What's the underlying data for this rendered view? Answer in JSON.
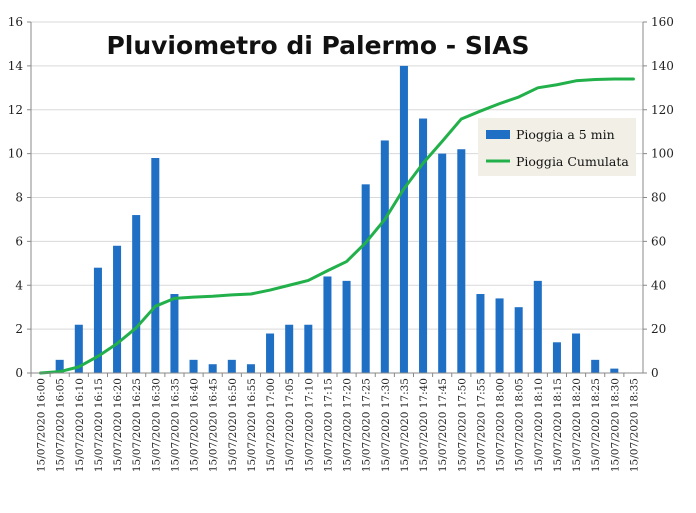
{
  "chart_data": {
    "type": "bar",
    "title": "Pluviometro di Palermo - SIAS",
    "xlabel": "",
    "ylabel": "",
    "y2label": "",
    "ylim": [
      0,
      16
    ],
    "y2lim": [
      0,
      160
    ],
    "yticks": [
      "0",
      "2",
      "4",
      "6",
      "8",
      "10",
      "12",
      "14",
      "16"
    ],
    "y2ticks": [
      "0",
      "20",
      "40",
      "60",
      "80",
      "100",
      "120",
      "140",
      "160"
    ],
    "grid": true,
    "legend_position": "right",
    "categories": [
      "15/07/2020 16:00",
      "15/07/2020 16:05",
      "15/07/2020 16:10",
      "15/07/2020 16:15",
      "15/07/2020 16:20",
      "15/07/2020 16:25",
      "15/07/2020 16:30",
      "15/07/2020 16:35",
      "15/07/2020 16:40",
      "15/07/2020 16:45",
      "15/07/2020 16:50",
      "15/07/2020 16:55",
      "15/07/2020 17:00",
      "15/07/2020 17:05",
      "15/07/2020 17:10",
      "15/07/2020 17:15",
      "15/07/2020 17:20",
      "15/07/2020 17:25",
      "15/07/2020 17:30",
      "15/07/2020 17:35",
      "15/07/2020 17:40",
      "15/07/2020 17:45",
      "15/07/2020 17:50",
      "15/07/2020 17:55",
      "15/07/2020 18:00",
      "15/07/2020 18:05",
      "15/07/2020 18:10",
      "15/07/2020 18:15",
      "15/07/2020 18:20",
      "15/07/2020 18:25",
      "15/07/2020 18:30",
      "15/07/2020 18:35"
    ],
    "series": [
      {
        "name": "Pioggia a 5 min",
        "type": "bar",
        "axis": "left",
        "color": "#1F6FC5",
        "values": [
          0,
          0.6,
          2.2,
          4.8,
          5.8,
          7.2,
          9.8,
          3.6,
          0.6,
          0.4,
          0.6,
          0.4,
          1.8,
          2.2,
          2.2,
          4.4,
          4.2,
          8.6,
          10.6,
          14.0,
          11.6,
          10.0,
          10.2,
          3.6,
          3.4,
          3.0,
          4.2,
          1.4,
          1.8,
          0.6,
          0.2,
          0
        ]
      },
      {
        "name": "Pioggia Cumulata",
        "type": "line",
        "axis": "right",
        "color": "#22B04A",
        "values": [
          0,
          0.6,
          2.8,
          7.6,
          13.4,
          20.6,
          30.4,
          34.0,
          34.6,
          35.0,
          35.6,
          36.0,
          37.8,
          40.0,
          42.2,
          46.6,
          50.8,
          59.4,
          70.0,
          84.0,
          95.6,
          105.6,
          115.8,
          119.4,
          122.8,
          125.8,
          130.0,
          131.4,
          133.2,
          133.8,
          134.0,
          134.0
        ]
      }
    ]
  },
  "colors": {
    "bar": "#1F6FC5",
    "line": "#22B04A",
    "grid": "#d9d9d9",
    "axis": "#888888",
    "legend_bg": "#f2f0e6"
  }
}
